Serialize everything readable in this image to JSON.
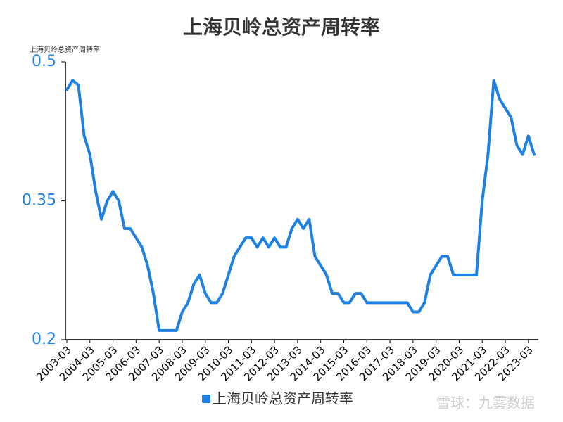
{
  "chart_data": {
    "type": "line",
    "title": "上海贝岭总资产周转率",
    "y_axis_label": "上海贝岭总资产周转率",
    "watermark": "雪球：九雾数据",
    "categories": [
      "2003-03",
      null,
      null,
      null,
      "2004-03",
      null,
      null,
      null,
      "2005-03",
      null,
      null,
      null,
      "2006-03",
      null,
      null,
      null,
      "2007-03",
      null,
      null,
      null,
      "2008-03",
      null,
      null,
      null,
      "2009-03",
      null,
      null,
      null,
      "2010-03",
      null,
      null,
      null,
      "2011-03",
      null,
      null,
      null,
      "2012-03",
      null,
      null,
      null,
      "2013-03",
      null,
      null,
      null,
      "2014-03",
      null,
      null,
      null,
      "2015-03",
      null,
      null,
      null,
      "2016-03",
      null,
      null,
      null,
      "2017-03",
      null,
      null,
      null,
      "2018-03",
      null,
      null,
      null,
      "2019-03",
      null,
      null,
      null,
      "2020-03",
      null,
      null,
      null,
      "2021-03",
      null,
      null,
      null,
      "2022-03",
      null,
      null,
      null,
      "2023-03",
      null
    ],
    "series": [
      {
        "name": "上海贝岭总资产周转率",
        "color": "#1e80e2",
        "values": [
          0.47,
          0.48,
          0.475,
          0.42,
          0.4,
          0.36,
          0.33,
          0.35,
          0.36,
          0.35,
          0.32,
          0.32,
          0.31,
          0.3,
          0.28,
          0.25,
          0.21,
          0.21,
          0.21,
          0.21,
          0.23,
          0.24,
          0.26,
          0.27,
          0.25,
          0.24,
          0.24,
          0.25,
          0.27,
          0.29,
          0.3,
          0.31,
          0.31,
          0.3,
          0.31,
          0.3,
          0.31,
          0.3,
          0.3,
          0.32,
          0.33,
          0.32,
          0.33,
          0.29,
          0.28,
          0.27,
          0.25,
          0.25,
          0.24,
          0.24,
          0.25,
          0.25,
          0.24,
          0.24,
          0.24,
          0.24,
          0.24,
          0.24,
          0.24,
          0.24,
          0.23,
          0.23,
          0.24,
          0.27,
          0.28,
          0.29,
          0.29,
          0.27,
          0.27,
          0.27,
          0.27,
          0.27,
          0.35,
          0.4,
          0.48,
          0.46,
          0.45,
          0.44,
          0.41,
          0.4,
          0.42,
          0.4
        ]
      }
    ],
    "ylim": [
      0.2,
      0.5
    ],
    "yticks": [
      0.2,
      0.35,
      0.5
    ],
    "grid": false
  }
}
